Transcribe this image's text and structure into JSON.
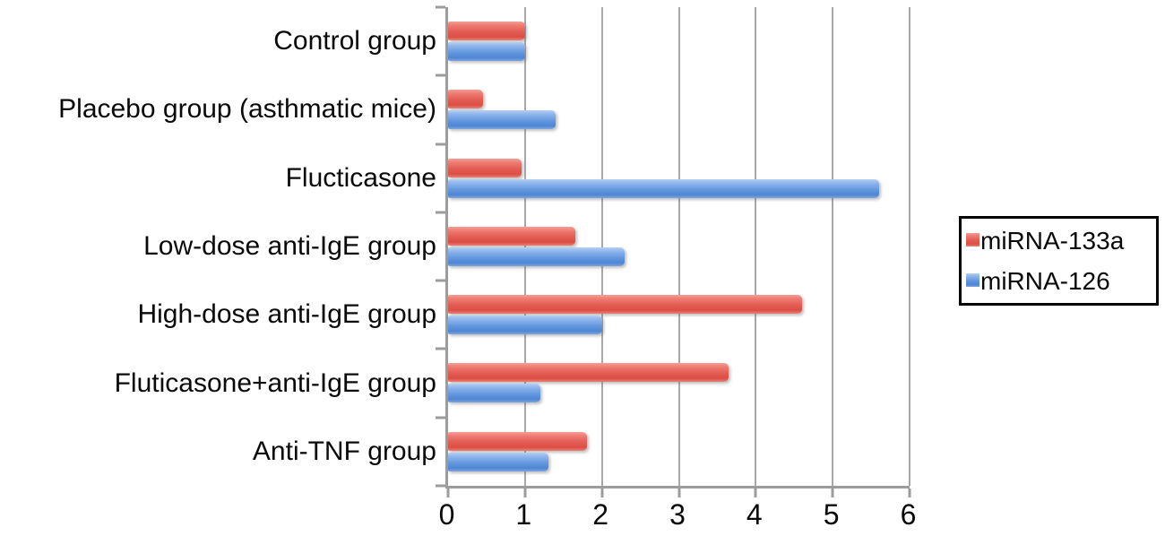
{
  "figure": {
    "background": "#ffffff"
  },
  "chart_data": {
    "type": "bar",
    "orientation": "horizontal",
    "title": "",
    "xlabel": "",
    "ylabel": "",
    "categories": [
      "Control group",
      "Placebo group (asthmatic mice)",
      "Flucticasone",
      "Low-dose anti-IgE group",
      "High-dose anti-IgE group",
      "Fluticasone+anti-IgE group",
      "Anti-TNF group"
    ],
    "series": [
      {
        "name": "miRNA-133a",
        "color": "#e4615a",
        "values": [
          1.0,
          0.45,
          0.95,
          1.65,
          4.6,
          3.65,
          1.8
        ]
      },
      {
        "name": "miRNA-126",
        "color": "#6b9ee3",
        "values": [
          1.0,
          1.4,
          5.6,
          2.3,
          2.0,
          1.2,
          1.3
        ]
      }
    ],
    "xlim": [
      0,
      6
    ],
    "xticks": [
      0,
      1,
      2,
      3,
      4,
      5,
      6
    ],
    "grid": true,
    "legend_position": "right"
  },
  "colors": {
    "bar_red": "#e4615a",
    "bar_blue": "#6b9ee3",
    "gridline": "#a8a8a8",
    "axis": "#9c9c9c",
    "text": "#000000",
    "legend_border": "#000000"
  }
}
